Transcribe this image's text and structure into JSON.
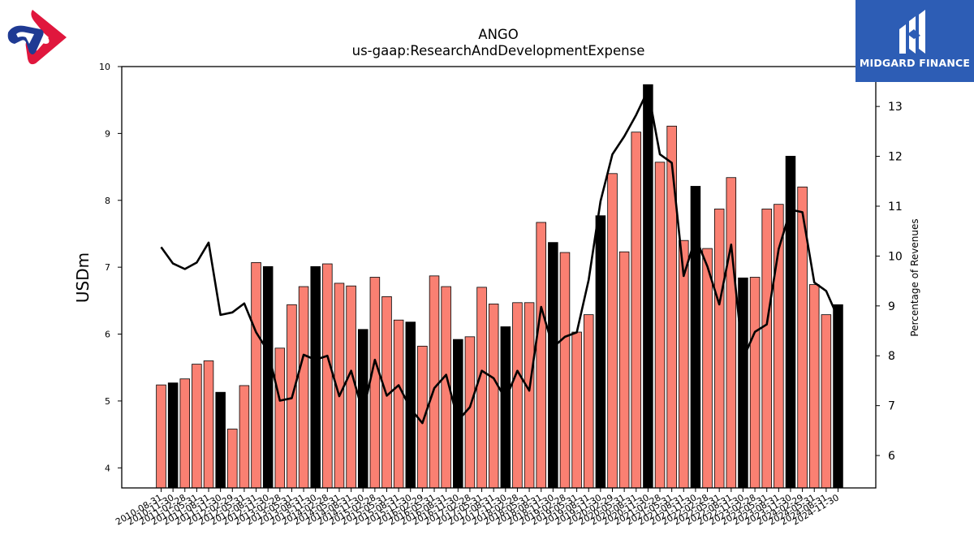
{
  "brand": {
    "name": "MIDGARD FINANCE",
    "box_color": "#2d5db5"
  },
  "chart_data": {
    "type": "bar",
    "title": "ANGO",
    "subtitle": "us-gaap:ResearchAndDevelopmentExpense",
    "ylabel": "USDm",
    "y2label": "Percentage of Revenues",
    "ylim": [
      3.7,
      10
    ],
    "y2lim": [
      5.35,
      13.8
    ],
    "yticks": [
      4,
      5,
      6,
      7,
      8,
      9,
      10
    ],
    "y2ticks": [
      6,
      7,
      8,
      9,
      10,
      11,
      12,
      13
    ],
    "bar_color": "#fa8072",
    "highlight_color": "#000000",
    "line_color": "#000000",
    "categories": [
      "2010-08-31",
      "2010-11-30",
      "2011-02-28",
      "2011-05-31",
      "2011-08-31",
      "2011-11-30",
      "2012-02-29",
      "2012-05-31",
      "2012-08-31",
      "2012-11-30",
      "2013-02-28",
      "2013-05-31",
      "2013-08-31",
      "2013-11-30",
      "2014-02-28",
      "2014-05-31",
      "2014-08-31",
      "2014-11-30",
      "2015-02-28",
      "2015-05-31",
      "2015-08-31",
      "2015-11-30",
      "2016-02-29",
      "2016-05-31",
      "2016-08-31",
      "2016-11-30",
      "2017-02-28",
      "2017-05-31",
      "2017-08-31",
      "2017-11-30",
      "2018-02-28",
      "2018-05-31",
      "2018-08-31",
      "2018-11-30",
      "2019-02-28",
      "2019-05-31",
      "2019-08-31",
      "2019-11-30",
      "2020-02-29",
      "2020-05-31",
      "2020-08-31",
      "2020-11-30",
      "2021-02-28",
      "2021-05-31",
      "2021-08-31",
      "2021-11-30",
      "2022-02-28",
      "2022-05-31",
      "2022-08-31",
      "2022-11-30",
      "2023-02-28",
      "2023-05-31",
      "2023-08-31",
      "2023-11-30",
      "2024-02-29",
      "2024-05-31",
      "2024-08-31",
      "2024-11-30"
    ],
    "tick_labels": [
      "2010-08-31",
      "2010-11-30",
      "2011-02-28",
      "2011-05-31",
      "2011-08-31",
      "2011-11-30",
      "2012-02-29",
      "2012-05-31",
      "2012-08-31",
      "2012-11-30",
      "2013-02-28",
      "2013-05-31",
      "2013-08-31",
      "2013-11-30",
      "2014-02-28",
      "2014-05-31",
      "2014-08-31",
      "2014-11-30",
      "2015-02-28",
      "2015-05-31",
      "2015-08-31",
      "2015-11-30",
      "2016-02-29",
      "2016-05-31",
      "2016-08-31",
      "2016-11-30",
      "2017-02-28",
      "2017-05-31",
      "2017-08-31",
      "2017-11-30",
      "2018-02-28",
      "2018-05-31",
      "2018-08-31",
      "2018-11-30",
      "2019-02-28",
      "2019-05-31",
      "2019-08-31",
      "2019-11-30",
      "2020-02-29",
      "2020-05-31",
      "2020-08-31",
      "2020-11-30",
      "2021-02-28",
      "2021-05-31",
      "2021-08-31",
      "2021-11-30",
      "2022-02-28",
      "2022-05-31",
      "2022-08-31",
      "2022-11-30",
      "2023-02-28",
      "2023-05-31",
      "2023-08-31",
      "2023-11-30",
      "2024-02-29",
      "2024-05-31",
      "2024-08-31",
      "2024-11-30"
    ],
    "series": [
      {
        "type": "bar",
        "axis": "left",
        "values": [
          5.24,
          5.27,
          5.33,
          5.55,
          5.6,
          5.13,
          4.58,
          5.23,
          7.07,
          7.01,
          5.79,
          6.44,
          6.71,
          7.01,
          7.05,
          6.76,
          6.72,
          6.07,
          6.85,
          6.56,
          6.21,
          6.18,
          5.82,
          6.87,
          6.71,
          5.92,
          5.96,
          6.7,
          6.45,
          6.11,
          6.47,
          6.47,
          7.67,
          7.37,
          7.22,
          6.03,
          6.29,
          7.77,
          8.4,
          7.23,
          9.02,
          9.73,
          8.57,
          9.11,
          7.4,
          8.21,
          7.28,
          7.87,
          8.34,
          6.84,
          6.85,
          7.87,
          7.94,
          8.66,
          8.2,
          6.74,
          6.29,
          6.44
        ],
        "highlight": [
          false,
          true,
          false,
          false,
          false,
          true,
          false,
          false,
          false,
          true,
          false,
          false,
          false,
          true,
          false,
          false,
          false,
          true,
          false,
          false,
          false,
          true,
          false,
          false,
          false,
          true,
          false,
          false,
          false,
          true,
          false,
          false,
          false,
          true,
          false,
          false,
          false,
          true,
          false,
          false,
          false,
          true,
          false,
          false,
          false,
          true,
          false,
          false,
          false,
          true,
          false,
          false,
          false,
          true,
          false,
          false,
          false,
          true
        ]
      },
      {
        "type": "line",
        "axis": "right",
        "values": [
          10.18,
          9.85,
          9.74,
          9.87,
          10.27,
          8.82,
          8.87,
          9.05,
          8.47,
          8.09,
          7.1,
          7.15,
          8.02,
          7.92,
          8.0,
          7.19,
          7.7,
          6.86,
          7.92,
          7.2,
          7.41,
          6.94,
          6.65,
          7.35,
          7.62,
          6.7,
          6.97,
          7.7,
          7.55,
          7.13,
          7.7,
          7.3,
          8.98,
          8.17,
          8.38,
          8.47,
          9.52,
          11.1,
          12.04,
          12.4,
          12.83,
          13.33,
          12.04,
          11.87,
          9.6,
          10.37,
          9.79,
          9.03,
          10.23,
          7.94,
          8.48,
          8.63,
          10.14,
          10.93,
          10.88,
          9.47,
          9.3,
          8.76
        ]
      }
    ]
  }
}
